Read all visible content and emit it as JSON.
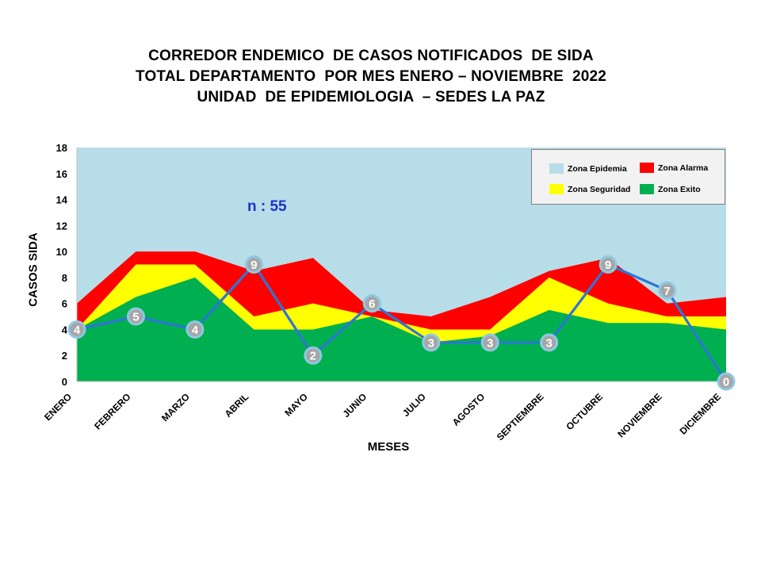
{
  "title": {
    "line1": "CORREDOR ENDEMICO  DE CASOS NOTIFICADOS  DE SIDA",
    "line2": "TOTAL DEPARTAMENTO  POR MES ENERO – NOVIEMBRE  2022",
    "line3": "UNIDAD  DE EPIDEMIOLOGIA  – SEDES LA PAZ"
  },
  "annotation": "n : 55",
  "colors": {
    "epidemia": "#b7dde8",
    "alarma": "#ff0000",
    "seguridad": "#ffff00",
    "exito": "#00b050",
    "line": "#2e75d6",
    "marker_fill": "#a6a6a6",
    "marker_stroke": "#8fc8e0"
  },
  "legend": {
    "epidemia": "Zona Epidemia",
    "alarma": "Zona Alarma",
    "seguridad": "Zona Seguridad",
    "exito": "Zona Exito"
  },
  "chart_data": {
    "type": "area",
    "xlabel": "MESES",
    "ylabel": "CASOS SIDA",
    "ylim": [
      0,
      18
    ],
    "yticks": [
      0,
      2,
      4,
      6,
      8,
      10,
      12,
      14,
      16,
      18
    ],
    "grid": false,
    "legend_position": "top-right",
    "categories": [
      "ENERO",
      "FEBRERO",
      "MARZO",
      "ABRIL",
      "MAYO",
      "JUNIO",
      "JULIO",
      "AGOSTO",
      "SEPTIEMBRE",
      "OCTUBRE",
      "NOVIEMBRE",
      "DICIEMBRE"
    ],
    "zones": [
      {
        "name": "Zona Epidemia",
        "values": [
          18,
          18,
          18,
          18,
          18,
          18,
          18,
          18,
          18,
          18,
          18,
          18
        ]
      },
      {
        "name": "Zona Alarma",
        "values": [
          6,
          10,
          10,
          8.5,
          9.5,
          5.5,
          5,
          6.5,
          8.5,
          9.5,
          6,
          6.5
        ]
      },
      {
        "name": "Zona Seguridad",
        "values": [
          4,
          9,
          9,
          5,
          6,
          5,
          4,
          4,
          8,
          6,
          5,
          5
        ]
      },
      {
        "name": "Zona Exito",
        "values": [
          4,
          6.5,
          8,
          4,
          4,
          5,
          3,
          3.5,
          5.5,
          4.5,
          4.5,
          4
        ]
      }
    ],
    "series": [
      {
        "values": [
          4,
          5,
          4,
          9,
          2,
          6,
          3,
          3,
          3,
          9,
          7,
          0
        ]
      }
    ]
  }
}
